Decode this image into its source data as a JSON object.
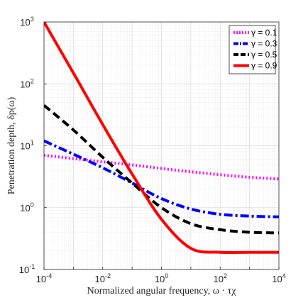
{
  "chart_data": {
    "type": "line",
    "xlabel": "Normalized angular frequency, ω · τχ",
    "ylabel": "Penetration depth, δp(ω)",
    "xscale": "log",
    "yscale": "log",
    "xlim": [
      0.0001,
      10000
    ],
    "ylim": [
      0.1,
      1000
    ],
    "grid": true,
    "legend_position": "top-right",
    "x_ticks": [
      {
        "base": "10",
        "exp": "-4"
      },
      {
        "base": "10",
        "exp": "-2"
      },
      {
        "base": "10",
        "exp": "0"
      },
      {
        "base": "10",
        "exp": "2"
      },
      {
        "base": "10",
        "exp": "4"
      }
    ],
    "y_ticks": [
      {
        "base": "10",
        "exp": "-1"
      },
      {
        "base": "10",
        "exp": "0"
      },
      {
        "base": "10",
        "exp": "1"
      },
      {
        "base": "10",
        "exp": "2"
      },
      {
        "base": "10",
        "exp": "3"
      }
    ],
    "x": [
      0.0001,
      0.001,
      0.01,
      0.1,
      1,
      10,
      100,
      1000,
      10000
    ],
    "series": [
      {
        "name": "γ = 0.1",
        "color": "#ff00ff",
        "dash": "dotted",
        "values": [
          7.0,
          6.2,
          5.5,
          4.9,
          4.3,
          3.8,
          3.4,
          3.1,
          2.9
        ]
      },
      {
        "name": "γ = 0.3",
        "color": "#0000ff",
        "dash": "dashdot",
        "values": [
          12.0,
          7.3,
          4.4,
          2.5,
          1.4,
          0.95,
          0.78,
          0.73,
          0.71
        ]
      },
      {
        "name": "γ = 0.5",
        "color": "#000000",
        "dash": "dashed",
        "values": [
          45.0,
          18.0,
          6.5,
          2.5,
          1.0,
          0.55,
          0.44,
          0.4,
          0.39
        ]
      },
      {
        "name": "γ = 0.9",
        "color": "#ff0000",
        "dash": "solid",
        "values": [
          1000,
          150,
          22,
          3.5,
          0.65,
          0.22,
          0.19,
          0.19,
          0.19
        ]
      }
    ]
  }
}
